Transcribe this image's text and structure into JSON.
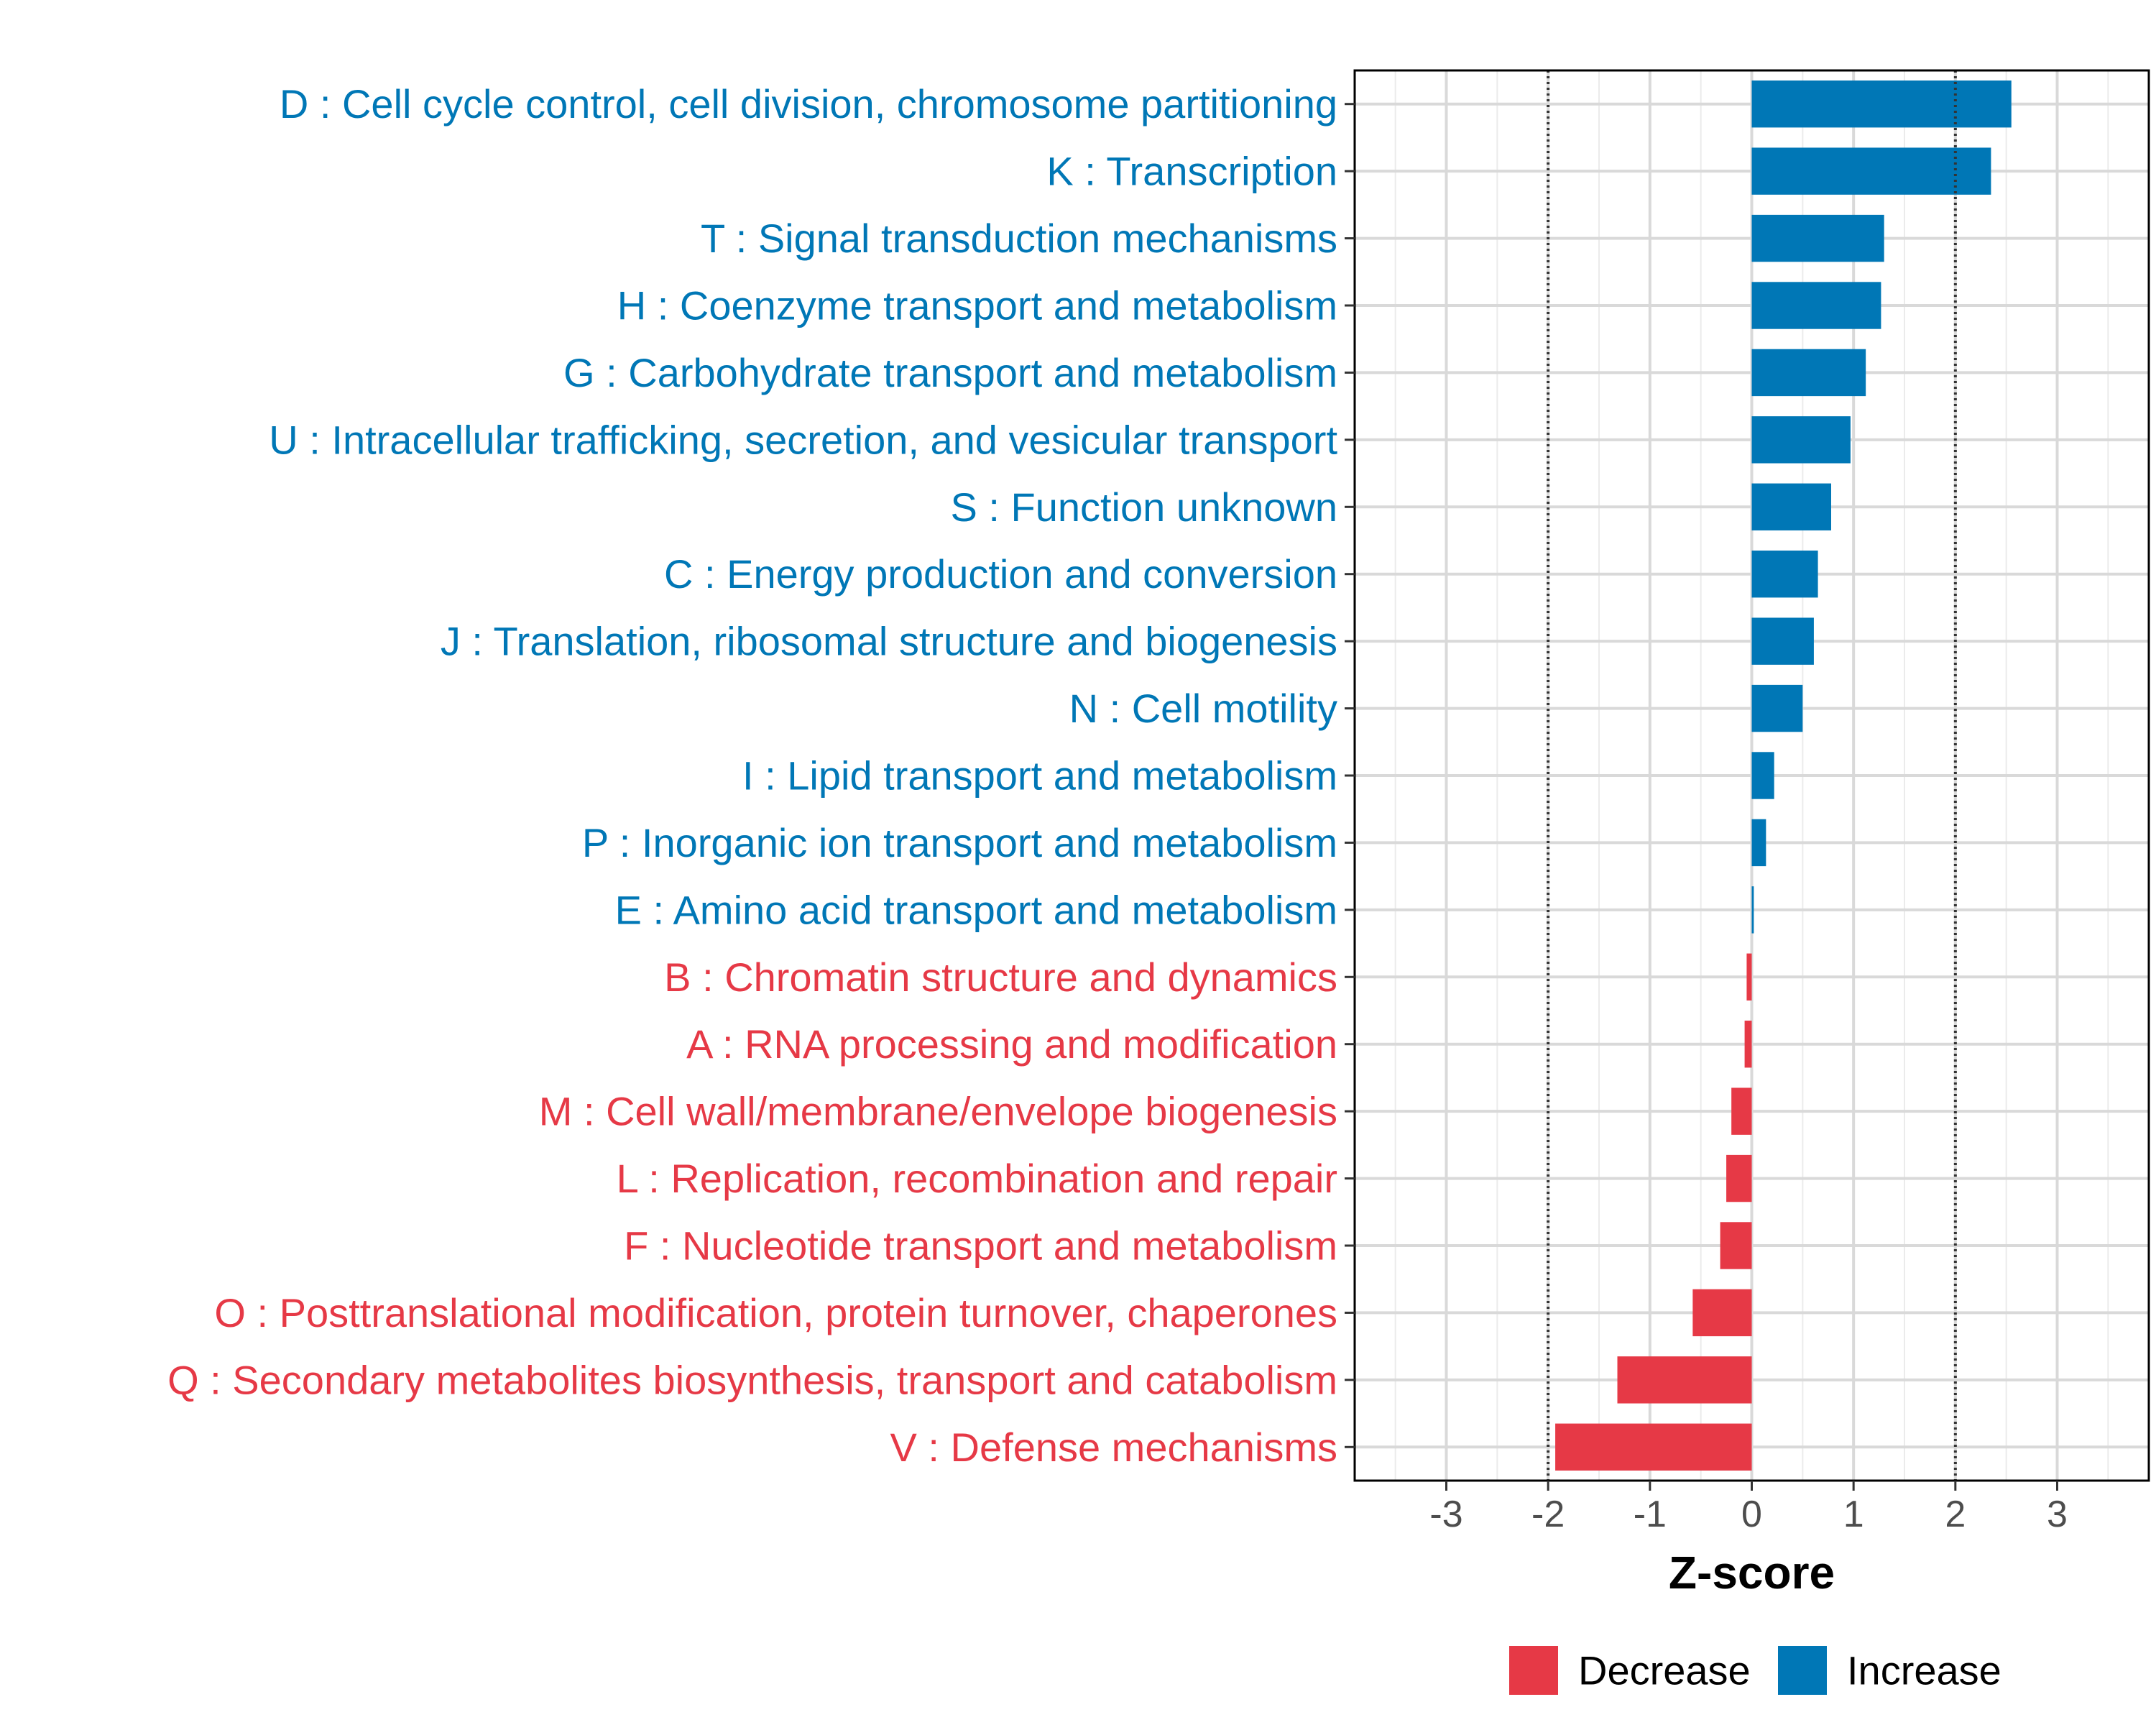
{
  "chart_data": {
    "type": "bar",
    "orientation": "horizontal",
    "xlabel": "Z-score",
    "xlim": [
      -3.9,
      3.9
    ],
    "x_ticks": [
      -3,
      -2,
      -1,
      0,
      1,
      2,
      3
    ],
    "x_tick_labels": [
      "-3",
      "-2",
      "-1",
      "0",
      "1",
      "2",
      "3"
    ],
    "reference_lines": [
      -2,
      2
    ],
    "grid": true,
    "legend_position": "bottom",
    "legend": [
      {
        "label": "Decrease",
        "color": "#e63946"
      },
      {
        "label": "Increase",
        "color": "#0077b6"
      }
    ],
    "colors": {
      "Decrease": "#e63946",
      "Increase": "#0077b6"
    },
    "categories": [
      {
        "label": "D : Cell cycle control, cell division, chromosome partitioning",
        "value": 2.55,
        "direction": "Increase"
      },
      {
        "label": "K : Transcription",
        "value": 2.35,
        "direction": "Increase"
      },
      {
        "label": "T : Signal transduction mechanisms",
        "value": 1.3,
        "direction": "Increase"
      },
      {
        "label": "H : Coenzyme transport and metabolism",
        "value": 1.27,
        "direction": "Increase"
      },
      {
        "label": "G : Carbohydrate transport and metabolism",
        "value": 1.12,
        "direction": "Increase"
      },
      {
        "label": "U : Intracellular trafficking, secretion, and vesicular transport",
        "value": 0.97,
        "direction": "Increase"
      },
      {
        "label": "S : Function unknown",
        "value": 0.78,
        "direction": "Increase"
      },
      {
        "label": "C : Energy production and conversion",
        "value": 0.65,
        "direction": "Increase"
      },
      {
        "label": "J : Translation, ribosomal structure and biogenesis",
        "value": 0.61,
        "direction": "Increase"
      },
      {
        "label": "N : Cell motility",
        "value": 0.5,
        "direction": "Increase"
      },
      {
        "label": "I : Lipid transport and metabolism",
        "value": 0.22,
        "direction": "Increase"
      },
      {
        "label": "P : Inorganic ion transport and metabolism",
        "value": 0.14,
        "direction": "Increase"
      },
      {
        "label": "E : Amino acid transport and metabolism",
        "value": 0.02,
        "direction": "Increase"
      },
      {
        "label": "B : Chromatin structure and dynamics",
        "value": -0.05,
        "direction": "Decrease"
      },
      {
        "label": "A : RNA processing and modification",
        "value": -0.07,
        "direction": "Decrease"
      },
      {
        "label": "M : Cell wall/membrane/envelope biogenesis",
        "value": -0.2,
        "direction": "Decrease"
      },
      {
        "label": "L : Replication, recombination and repair",
        "value": -0.25,
        "direction": "Decrease"
      },
      {
        "label": "F : Nucleotide transport and metabolism",
        "value": -0.31,
        "direction": "Decrease"
      },
      {
        "label": "O : Posttranslational modification, protein turnover, chaperones",
        "value": -0.58,
        "direction": "Decrease"
      },
      {
        "label": "Q : Secondary metabolites biosynthesis, transport and catabolism",
        "value": -1.32,
        "direction": "Decrease"
      },
      {
        "label": "V : Defense mechanisms",
        "value": -1.93,
        "direction": "Decrease"
      }
    ]
  }
}
